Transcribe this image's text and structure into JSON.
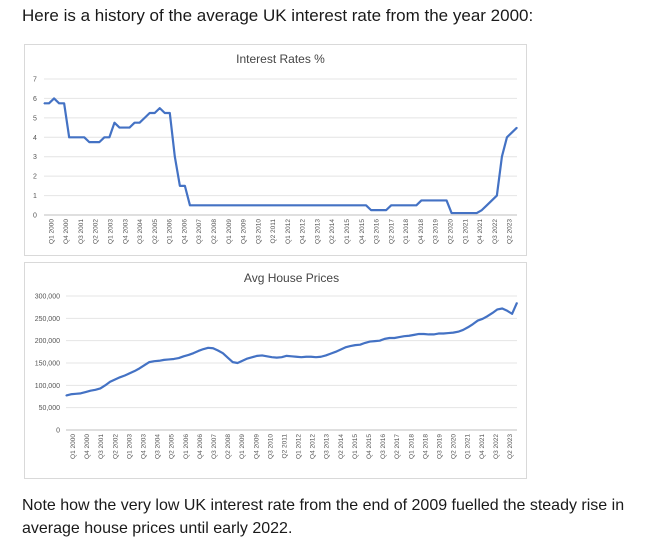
{
  "intro_text": "Here is a history of the average UK interest rate from the year 2000:",
  "note_text": "Note how the very low UK interest rate from the end of 2009 fuelled the steady rise in average house prices until early 2022.",
  "colors": {
    "line": "#4472c4",
    "grid": "#e4e4e4",
    "text": "#1a1a1a"
  },
  "chart_data": [
    {
      "type": "line",
      "title": "Interest Rates %",
      "ylim": [
        0,
        7
      ],
      "yticks": [
        "0",
        "1",
        "2",
        "3",
        "4",
        "5",
        "6",
        "7"
      ],
      "grid": true,
      "xticks": [
        "Q1 2000",
        "Q4 2000",
        "Q3 2001",
        "Q2 2002",
        "Q1 2003",
        "Q4 2003",
        "Q3 2004",
        "Q2 2005",
        "Q1 2006",
        "Q4 2006",
        "Q3 2007",
        "Q2 2008",
        "Q1 2009",
        "Q4 2009",
        "Q3 2010",
        "Q2 2011",
        "Q1 2012",
        "Q4 2012",
        "Q3 2013",
        "Q2 2014",
        "Q1 2015",
        "Q4 2015",
        "Q3 2016",
        "Q2 2017",
        "Q1 2018",
        "Q4 2018",
        "Q3 2019",
        "Q2 2020",
        "Q1 2021",
        "Q4 2021",
        "Q3 2022",
        "Q2 2023"
      ],
      "series": [
        {
          "values": [
            5.75,
            5.75,
            6.0,
            5.75,
            5.75,
            4.0,
            4.0,
            4.0,
            4.0,
            3.75,
            3.75,
            3.75,
            4.0,
            4.0,
            4.75,
            4.5,
            4.5,
            4.5,
            4.75,
            4.75,
            5.0,
            5.25,
            5.25,
            5.5,
            5.25,
            5.25,
            3.0,
            1.5,
            1.5,
            0.5,
            0.5,
            0.5,
            0.5,
            0.5,
            0.5,
            0.5,
            0.5,
            0.5,
            0.5,
            0.5,
            0.5,
            0.5,
            0.5,
            0.5,
            0.5,
            0.5,
            0.5,
            0.5,
            0.5,
            0.5,
            0.5,
            0.5,
            0.5,
            0.5,
            0.5,
            0.5,
            0.5,
            0.5,
            0.5,
            0.5,
            0.5,
            0.5,
            0.5,
            0.5,
            0.5,
            0.25,
            0.25,
            0.25,
            0.25,
            0.5,
            0.5,
            0.5,
            0.5,
            0.5,
            0.5,
            0.75,
            0.75,
            0.75,
            0.75,
            0.75,
            0.75,
            0.1,
            0.1,
            0.1,
            0.1,
            0.1,
            0.1,
            0.25,
            0.5,
            0.75,
            1.0,
            3.0,
            4.0,
            4.25,
            4.5
          ]
        }
      ]
    },
    {
      "type": "line",
      "title": "Avg House Prices",
      "ylim": [
        0,
        300000
      ],
      "yticks": [
        "0",
        "50,000",
        "100,000",
        "150,000",
        "200,000",
        "250,000",
        "300,000"
      ],
      "grid": true,
      "xticks": [
        "Q1 2000",
        "Q4 2000",
        "Q3 2001",
        "Q2 2002",
        "Q1 2003",
        "Q4 2003",
        "Q3 2004",
        "Q2 2005",
        "Q1 2006",
        "Q4 2006",
        "Q3 2007",
        "Q2 2008",
        "Q1 2009",
        "Q4 2009",
        "Q3 2010",
        "Q2 2011",
        "Q1 2012",
        "Q4 2012",
        "Q3 2013",
        "Q2 2014",
        "Q1 2015",
        "Q4 2015",
        "Q3 2016",
        "Q2 2017",
        "Q1 2018",
        "Q4 2018",
        "Q3 2019",
        "Q2 2020",
        "Q1 2021",
        "Q4 2021",
        "Q3 2022",
        "Q2 2023"
      ],
      "series": [
        {
          "values": [
            77000,
            80000,
            81000,
            82000,
            85000,
            88000,
            90000,
            93000,
            100000,
            108000,
            113000,
            118000,
            122000,
            127000,
            132000,
            138000,
            145000,
            152000,
            154000,
            155000,
            157000,
            158000,
            159000,
            161000,
            165000,
            168000,
            172000,
            177000,
            181000,
            184000,
            183000,
            178000,
            172000,
            162000,
            152000,
            150000,
            155000,
            160000,
            163000,
            166000,
            167000,
            165000,
            163000,
            162000,
            163000,
            166000,
            165000,
            164000,
            163000,
            164000,
            164000,
            163000,
            164000,
            167000,
            171000,
            175000,
            180000,
            185000,
            188000,
            190000,
            191000,
            195000,
            198000,
            199000,
            200000,
            204000,
            206000,
            206000,
            208000,
            210000,
            211000,
            213000,
            215000,
            215000,
            214000,
            214000,
            216000,
            216000,
            217000,
            218000,
            220000,
            224000,
            230000,
            237000,
            245000,
            249000,
            255000,
            262000,
            270000,
            272000,
            267000,
            260000,
            285000
          ]
        }
      ]
    }
  ]
}
